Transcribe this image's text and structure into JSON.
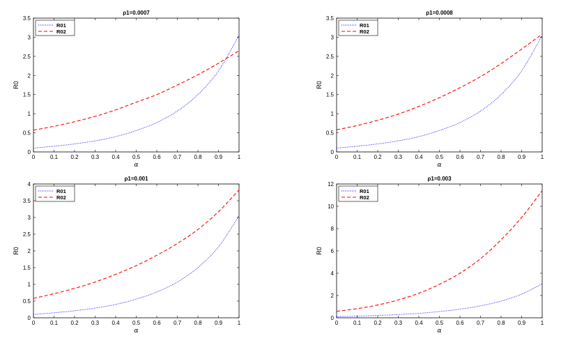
{
  "chart_data": [
    {
      "type": "line",
      "title": "ρ1=0.0007",
      "xlabel": "α",
      "ylabel": "R0",
      "xlim": [
        0,
        1
      ],
      "ylim": [
        0,
        3.5
      ],
      "xticks": [
        0,
        0.1,
        0.2,
        0.3,
        0.4,
        0.5,
        0.6,
        0.7,
        0.8,
        0.9,
        1
      ],
      "xtick_labels": [
        "0",
        "0.1",
        "0.2",
        "0.3",
        "0.4",
        "0.5",
        "0.6",
        "0.7",
        "0.8",
        "0.9",
        "1"
      ],
      "yticks": [
        0,
        0.5,
        1,
        1.5,
        2,
        2.5,
        3,
        3.5
      ],
      "ytick_labels": [
        "0",
        "0.5",
        "1",
        "1.5",
        "2",
        "2.5",
        "3",
        "3.5"
      ],
      "legend": "top-left",
      "x": [
        0,
        0.1,
        0.2,
        0.3,
        0.4,
        0.5,
        0.6,
        0.7,
        0.8,
        0.9,
        1
      ],
      "series": [
        {
          "name": "R01",
          "color": "#0000ff",
          "style": "dotted",
          "values": [
            0.1,
            0.15,
            0.21,
            0.29,
            0.4,
            0.56,
            0.77,
            1.07,
            1.5,
            2.12,
            3.05
          ]
        },
        {
          "name": "R02",
          "color": "#ff0000",
          "style": "dashed",
          "values": [
            0.57,
            0.67,
            0.79,
            0.93,
            1.1,
            1.3,
            1.5,
            1.75,
            2.02,
            2.32,
            2.65
          ]
        }
      ]
    },
    {
      "type": "line",
      "title": "ρ1=0.0008",
      "xlabel": "α",
      "ylabel": "R0",
      "xlim": [
        0,
        1
      ],
      "ylim": [
        0,
        3.5
      ],
      "xticks": [
        0,
        0.1,
        0.2,
        0.3,
        0.4,
        0.5,
        0.6,
        0.7,
        0.8,
        0.9,
        1
      ],
      "xtick_labels": [
        "0",
        "0.1",
        "0.2",
        "0.3",
        "0.4",
        "0.5",
        "0.6",
        "0.7",
        "0.8",
        "0.9",
        "1"
      ],
      "yticks": [
        0,
        0.5,
        1,
        1.5,
        2,
        2.5,
        3,
        3.5
      ],
      "ytick_labels": [
        "0",
        "0.5",
        "1",
        "1.5",
        "2",
        "2.5",
        "3",
        "3.5"
      ],
      "legend": "top-left",
      "x": [
        0,
        0.1,
        0.2,
        0.3,
        0.4,
        0.5,
        0.6,
        0.7,
        0.8,
        0.9,
        1
      ],
      "series": [
        {
          "name": "R01",
          "color": "#0000ff",
          "style": "dotted",
          "values": [
            0.1,
            0.15,
            0.21,
            0.29,
            0.4,
            0.56,
            0.77,
            1.07,
            1.5,
            2.12,
            3.05
          ]
        },
        {
          "name": "R02",
          "color": "#ff0000",
          "style": "dashed",
          "values": [
            0.58,
            0.69,
            0.83,
            0.99,
            1.19,
            1.42,
            1.68,
            1.97,
            2.31,
            2.69,
            3.08
          ]
        }
      ]
    },
    {
      "type": "line",
      "title": "ρ1=0.001",
      "xlabel": "α",
      "ylabel": "R0",
      "xlim": [
        0,
        1
      ],
      "ylim": [
        0,
        4
      ],
      "xticks": [
        0,
        0.1,
        0.2,
        0.3,
        0.4,
        0.5,
        0.6,
        0.7,
        0.8,
        0.9,
        1
      ],
      "xtick_labels": [
        "0",
        "0.1",
        "0.2",
        "0.3",
        "0.4",
        "0.5",
        "0.6",
        "0.7",
        "0.8",
        "0.9",
        "1"
      ],
      "yticks": [
        0,
        0.5,
        1,
        1.5,
        2,
        2.5,
        3,
        3.5,
        4
      ],
      "ytick_labels": [
        "0",
        "0.5",
        "1",
        "1.5",
        "2",
        "2.5",
        "3",
        "3.5",
        "4"
      ],
      "legend": "top-left",
      "x": [
        0,
        0.1,
        0.2,
        0.3,
        0.4,
        0.5,
        0.6,
        0.7,
        0.8,
        0.9,
        1
      ],
      "series": [
        {
          "name": "R01",
          "color": "#0000ff",
          "style": "dotted",
          "values": [
            0.1,
            0.15,
            0.21,
            0.29,
            0.4,
            0.56,
            0.77,
            1.07,
            1.5,
            2.12,
            3.05
          ]
        },
        {
          "name": "R02",
          "color": "#ff0000",
          "style": "dashed",
          "values": [
            0.58,
            0.72,
            0.88,
            1.07,
            1.3,
            1.56,
            1.87,
            2.22,
            2.64,
            3.17,
            3.82
          ]
        }
      ]
    },
    {
      "type": "line",
      "title": "ρ1=0.003",
      "xlabel": "α",
      "ylabel": "R0",
      "xlim": [
        0,
        1
      ],
      "ylim": [
        0,
        12
      ],
      "xticks": [
        0,
        0.1,
        0.2,
        0.3,
        0.4,
        0.5,
        0.6,
        0.7,
        0.8,
        0.9,
        1
      ],
      "xtick_labels": [
        "0",
        "0.1",
        "0.2",
        "0.3",
        "0.4",
        "0.5",
        "0.6",
        "0.7",
        "0.8",
        "0.9",
        "1"
      ],
      "yticks": [
        0,
        2,
        4,
        6,
        8,
        10,
        12
      ],
      "ytick_labels": [
        "0",
        "2",
        "4",
        "6",
        "8",
        "10",
        "12"
      ],
      "legend": "top-left",
      "x": [
        0,
        0.1,
        0.2,
        0.3,
        0.4,
        0.5,
        0.6,
        0.7,
        0.8,
        0.9,
        1
      ],
      "series": [
        {
          "name": "R01",
          "color": "#0000ff",
          "style": "dotted",
          "values": [
            0.1,
            0.15,
            0.21,
            0.29,
            0.4,
            0.56,
            0.77,
            1.07,
            1.5,
            2.12,
            3.05
          ]
        },
        {
          "name": "R02",
          "color": "#ff0000",
          "style": "dashed",
          "values": [
            0.58,
            0.82,
            1.15,
            1.6,
            2.2,
            3.0,
            4.0,
            5.3,
            7.0,
            9.0,
            11.4
          ]
        }
      ]
    }
  ]
}
